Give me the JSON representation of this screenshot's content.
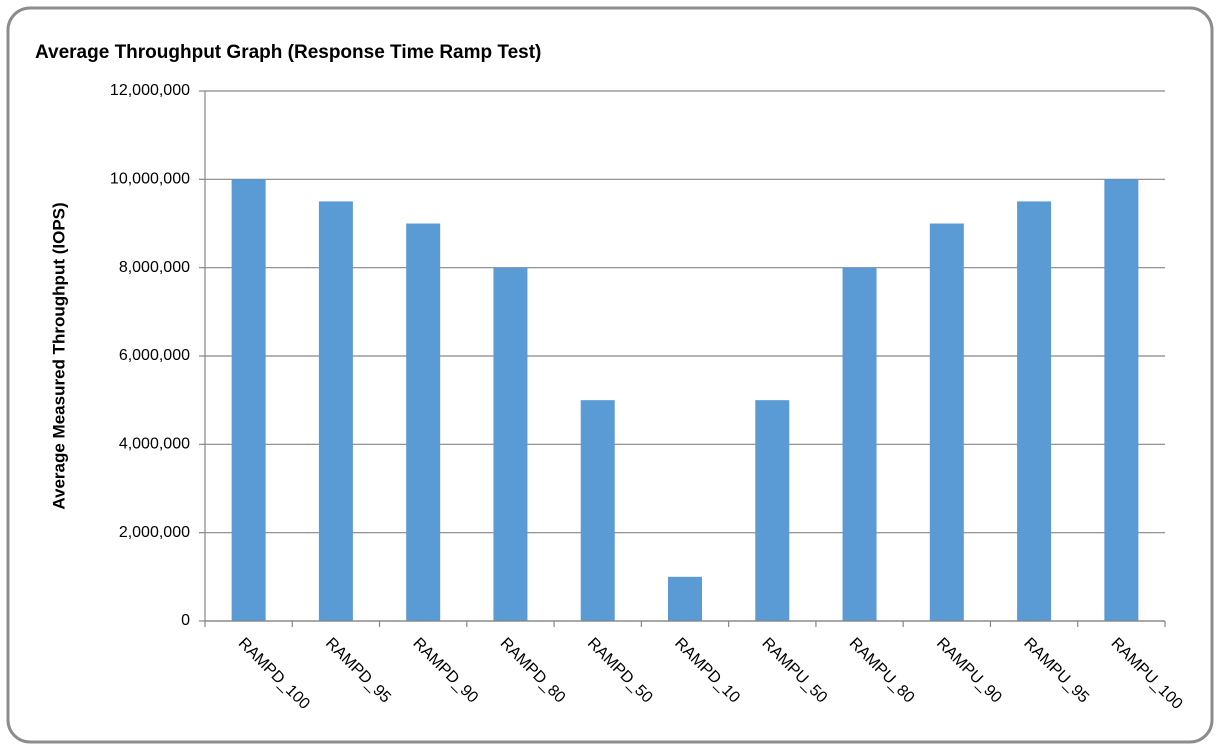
{
  "chart_data": {
    "type": "bar",
    "title": "Average Throughput  Graph (Response  Time Ramp Test)",
    "y_axis_label": "Average Measured Throughput  (IOPS)",
    "categories": [
      "RAMPD_100",
      "RAMPD_95",
      "RAMPD_90",
      "RAMPD_80",
      "RAMPD_50",
      "RAMPD_10",
      "RAMPU_50",
      "RAMPU_80",
      "RAMPU_90",
      "RAMPU_95",
      "RAMPU_100"
    ],
    "values": [
      10000000,
      9500000,
      9000000,
      8000000,
      5000000,
      1000000,
      5000000,
      8000000,
      9000000,
      9500000,
      10000000
    ],
    "color": "#5b9bd5",
    "ylim": [
      0,
      12000000
    ],
    "yticks": [
      0,
      {
        "value": 2000000,
        "label": "2,000,000"
      },
      {
        "value": 4000000,
        "label": "4,000,000"
      },
      {
        "value": 6000000,
        "label": "6,000,000"
      },
      {
        "value": 8000000,
        "label": "8,000,000"
      },
      {
        "value": 10000000,
        "label": "10,000,000"
      },
      {
        "value": 12000000,
        "label": "12,000,000"
      }
    ],
    "grid": true
  }
}
